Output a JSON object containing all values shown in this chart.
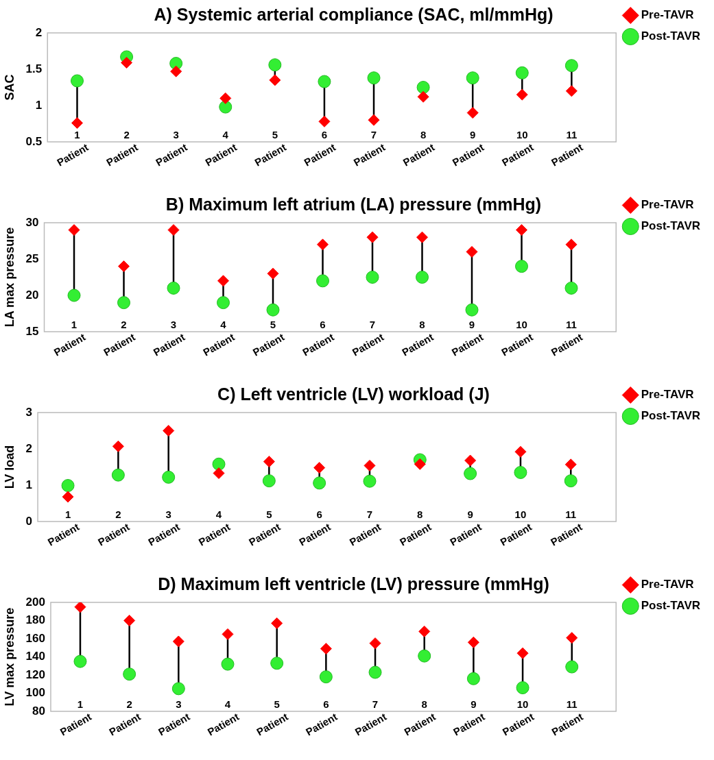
{
  "chart_data": [
    {
      "type": "scatter",
      "title": "A) Systemic arterial compliance (SAC, ml/mmHg)",
      "ylabel": "SAC",
      "categories": [
        "1 Patient",
        "2 Patient",
        "3 Patient",
        "4 Patient",
        "5 Patient",
        "6 Patient",
        "7 Patient",
        "8 Patient",
        "9 Patient",
        "10 Patient",
        "11 Patient"
      ],
      "series": [
        {
          "name": "Pre-TAVR",
          "color": "#ff0000",
          "marker": "diamond",
          "values": [
            0.76,
            1.59,
            1.47,
            1.1,
            1.35,
            0.78,
            0.8,
            1.12,
            0.9,
            1.15,
            1.2
          ]
        },
        {
          "name": "Post-TAVR",
          "color": "#33ee33",
          "marker": "circle",
          "values": [
            1.34,
            1.67,
            1.58,
            0.98,
            1.56,
            1.33,
            1.38,
            1.25,
            1.38,
            1.45,
            1.55
          ]
        }
      ],
      "ylim": [
        0.5,
        2
      ],
      "yticks": [
        0.5,
        1,
        1.5,
        2
      ],
      "grid": false,
      "legend": "top right"
    },
    {
      "type": "scatter",
      "title": "B) Maximum left atrium (LA) pressure (mmHg)",
      "ylabel": "LA max pressure",
      "categories": [
        "1 Patient",
        "2 Patient",
        "3 Patient",
        "4 Patient",
        "5 Patient",
        "6 Patient",
        "7 Patient",
        "8 Patient",
        "9 Patient",
        "10 Patient",
        "11 Patient"
      ],
      "series": [
        {
          "name": "Pre-TAVR",
          "color": "#ff0000",
          "marker": "diamond",
          "values": [
            29,
            24,
            29,
            22,
            23,
            27,
            28,
            28,
            26,
            29,
            27
          ]
        },
        {
          "name": "Post-TAVR",
          "color": "#33ee33",
          "marker": "circle",
          "values": [
            20,
            19,
            21,
            19,
            18,
            22,
            22.5,
            22.5,
            18,
            24,
            21
          ]
        }
      ],
      "ylim": [
        15,
        30
      ],
      "yticks": [
        15,
        20,
        25,
        30
      ],
      "grid": false,
      "legend": "top right"
    },
    {
      "type": "scatter",
      "title": "C) Left ventricle (LV) workload (J)",
      "ylabel": "LV load",
      "categories": [
        "1 Patient",
        "2 Patient",
        "3 Patient",
        "4 Patient",
        "5 Patient",
        "6 Patient",
        "7 Patient",
        "8 Patient",
        "9 Patient",
        "10 Patient",
        "11 Patient"
      ],
      "series": [
        {
          "name": "Pre-TAVR",
          "color": "#ff0000",
          "marker": "diamond",
          "values": [
            0.68,
            2.07,
            2.5,
            1.33,
            1.65,
            1.48,
            1.54,
            1.58,
            1.68,
            1.92,
            1.57
          ]
        },
        {
          "name": "Post-TAVR",
          "color": "#33ee33",
          "marker": "circle",
          "values": [
            0.99,
            1.28,
            1.22,
            1.58,
            1.12,
            1.06,
            1.11,
            1.7,
            1.32,
            1.35,
            1.12
          ]
        }
      ],
      "ylim": [
        0,
        3
      ],
      "yticks": [
        0,
        1,
        2,
        3
      ],
      "grid": false,
      "legend": "top right"
    },
    {
      "type": "scatter",
      "title": "D) Maximum left ventricle (LV) pressure (mmHg)",
      "ylabel": "LV max pressure",
      "categories": [
        "1 Patient",
        "2 Patient",
        "3 Patient",
        "4 Patient",
        "5 Patient",
        "6 Patient",
        "7 Patient",
        "8 Patient",
        "9 Patient",
        "10 Patient",
        "11 Patient"
      ],
      "series": [
        {
          "name": "Pre-TAVR",
          "color": "#ff0000",
          "marker": "diamond",
          "values": [
            195,
            180,
            157,
            165,
            177,
            149,
            155,
            168,
            156,
            144,
            161
          ]
        },
        {
          "name": "Post-TAVR",
          "color": "#33ee33",
          "marker": "circle",
          "values": [
            135,
            121,
            105,
            132,
            133,
            118,
            123,
            141,
            116,
            106,
            129
          ]
        }
      ],
      "ylim": [
        80,
        200
      ],
      "yticks": [
        80,
        100,
        120,
        140,
        160,
        180,
        200
      ],
      "grid": false,
      "legend": "top right"
    }
  ]
}
